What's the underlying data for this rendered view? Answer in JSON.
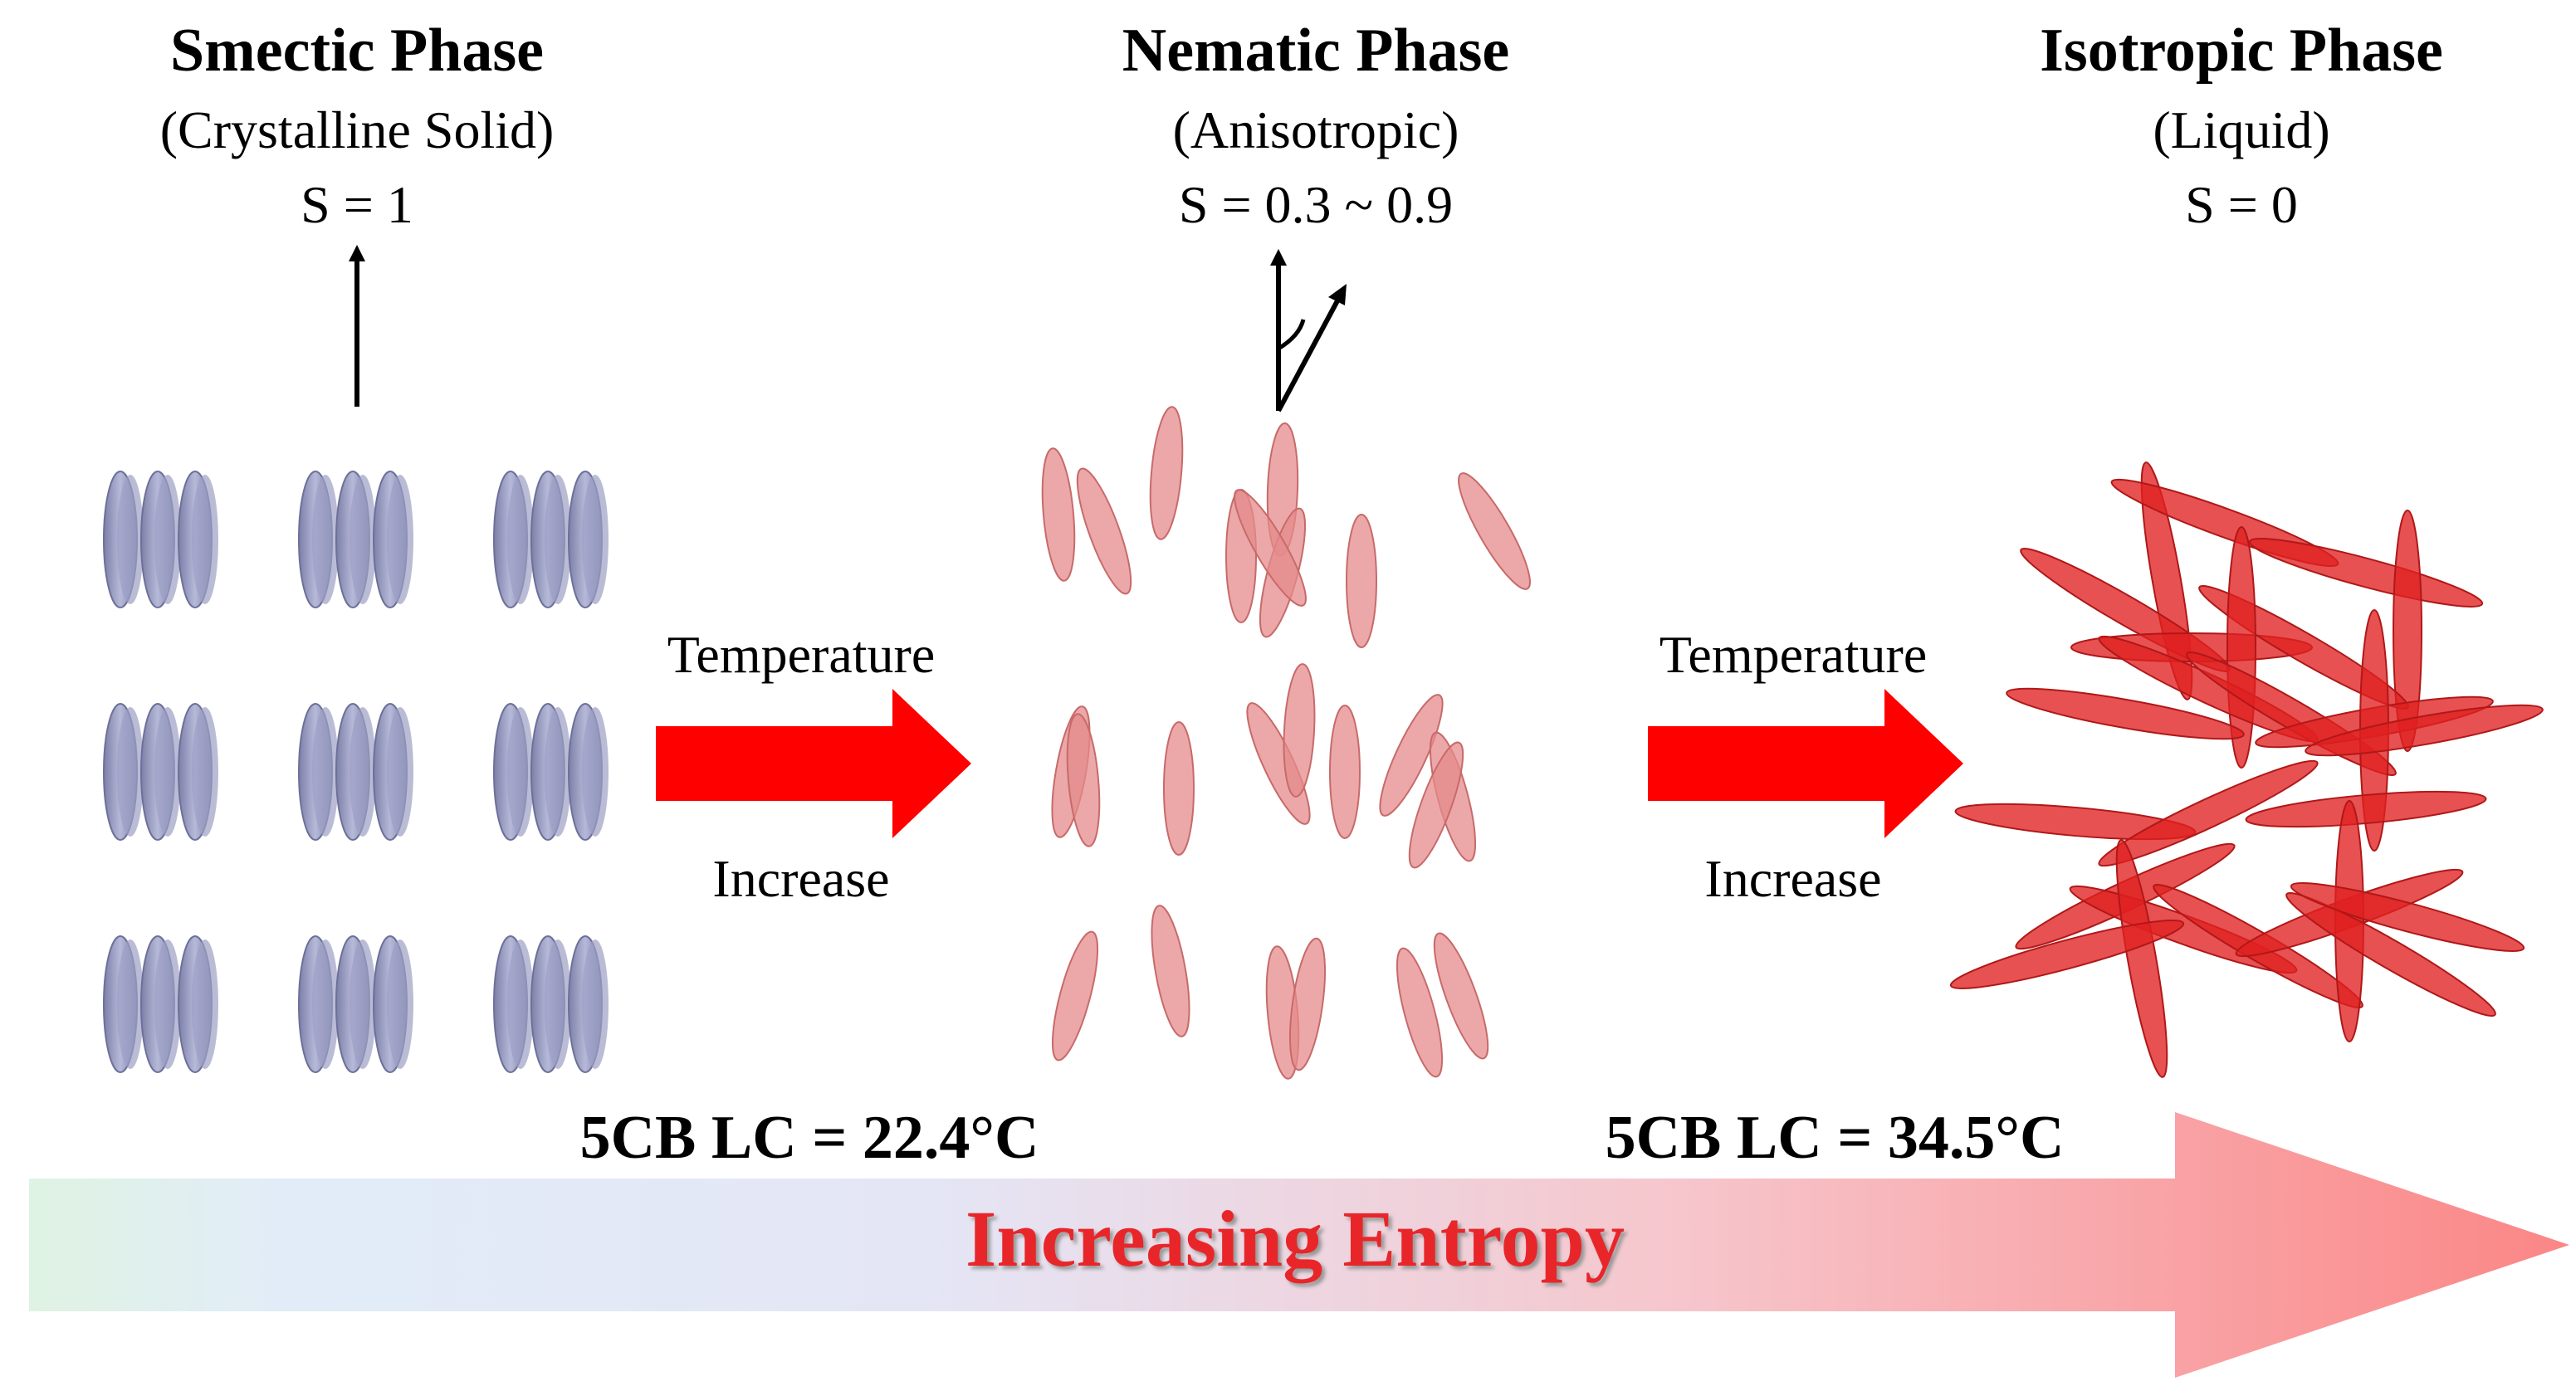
{
  "phases": [
    {
      "title": "Smectic Phase",
      "subtitle": "(Crystalline Solid)",
      "order": "S = 1"
    },
    {
      "title": "Nematic Phase",
      "subtitle": "(Anisotropic)",
      "order": "S = 0.3 ~ 0.9"
    },
    {
      "title": "Isotropic Phase",
      "subtitle": "(Liquid)",
      "order": "S = 0"
    }
  ],
  "transitions": [
    {
      "top": "Temperature",
      "bottom": "Increase",
      "point": "5CB LC = 22.4°C"
    },
    {
      "top": "Temperature",
      "bottom": "Increase",
      "point": "5CB LC = 34.5°C"
    }
  ],
  "entropy_label": "Increasing Entropy"
}
